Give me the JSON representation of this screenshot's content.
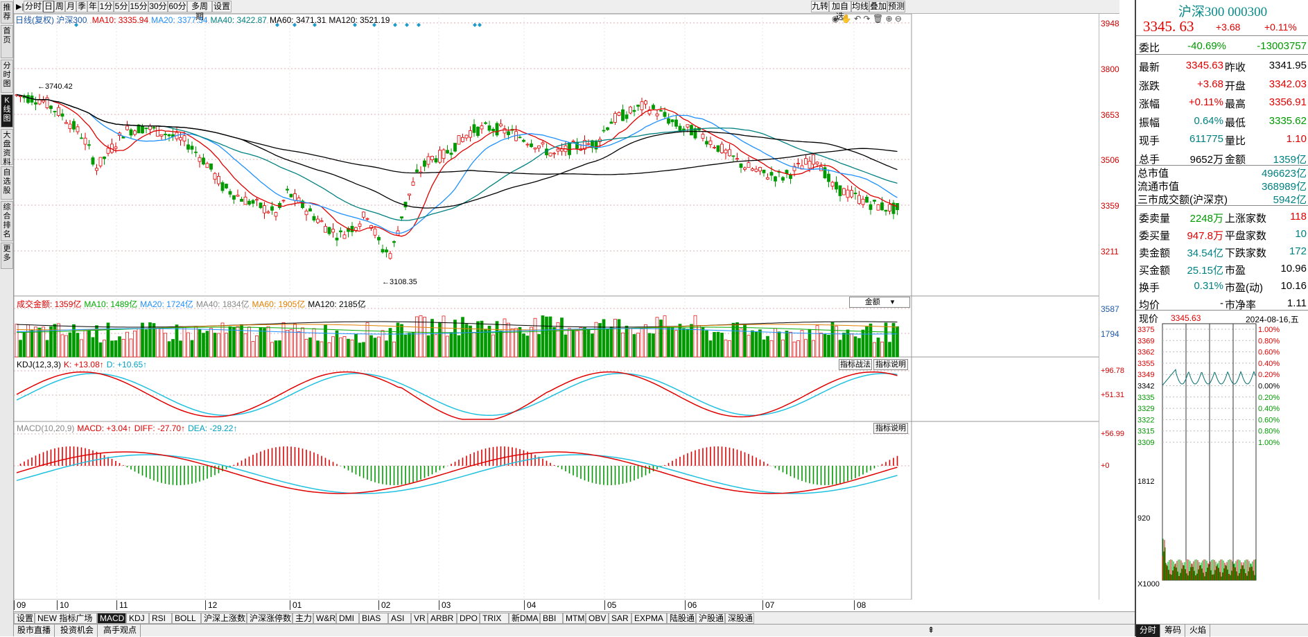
{
  "left_nav": [
    "推荐",
    "首页",
    "分时图",
    "K线图",
    "大盘资料",
    "自选股",
    "综合排名",
    "更多"
  ],
  "left_nav_active": 3,
  "period_bar": {
    "arrow_icon": "play-arrow-icon",
    "buttons": [
      "分时",
      "日",
      "周",
      "月",
      "季",
      "年",
      "1分",
      "5分",
      "15分",
      "30分",
      "60分",
      "多周期",
      "设置"
    ],
    "active_index": 1,
    "right_buttons": [
      "九转",
      "加自选",
      "均线",
      "叠加",
      "预测"
    ]
  },
  "main_chart": {
    "legend_prefix": "日线(复权)",
    "index_name": "沪深300",
    "ma": [
      {
        "label": "MA10: 3335.94",
        "color": "#e00000"
      },
      {
        "label": "MA20: 3377.34",
        "color": "#1e90ff"
      },
      {
        "label": "MA40: 3422.87",
        "color": "#008080"
      },
      {
        "label": "MA60: 3471.31",
        "color": "#000000"
      },
      {
        "label": "MA120: 3521.19",
        "color": "#000000"
      }
    ],
    "y_ticks": [
      "3948",
      "3800",
      "3653",
      "3506",
      "3359",
      "3211"
    ],
    "high_label": "3740.42",
    "low_label": "3108.35",
    "toolbar_icons": [
      "eye-icon",
      "hand-icon",
      "undo-icon",
      "redo-icon",
      "delete-icon",
      "zoom-in-icon",
      "zoom-out-icon"
    ]
  },
  "volume_panel": {
    "legend": [
      {
        "label": "成交金额: 1359亿",
        "color": "#e00000"
      },
      {
        "label": "MA10: 1489亿",
        "color": "#00aa00"
      },
      {
        "label": "MA20: 1724亿",
        "color": "#1e90ff"
      },
      {
        "label": "MA40: 1834亿",
        "color": "#888888"
      },
      {
        "label": "MA60: 1905亿",
        "color": "#e08000"
      },
      {
        "label": "MA120: 2185亿",
        "color": "#000000"
      }
    ],
    "selector": "金额",
    "y_ticks": [
      "3587",
      "1794"
    ]
  },
  "kdj_panel": {
    "legend": [
      {
        "label": "KDJ(12,3,3)",
        "color": "#000000"
      },
      {
        "label": "K: +13.08↑",
        "color": "#e00000"
      },
      {
        "label": "D: +10.65↑",
        "color": "#00a0c0"
      }
    ],
    "buttons": [
      "指标战法",
      "指标说明"
    ],
    "y_ticks": [
      "+96.78",
      "+51.31"
    ]
  },
  "macd_panel": {
    "legend": [
      {
        "label": "MACD(10,20,9)",
        "color": "#888888"
      },
      {
        "label": "MACD: +3.04↑",
        "color": "#e00000"
      },
      {
        "label": "DIFF: -27.70↑",
        "color": "#e00000"
      },
      {
        "label": "DEA: -29.22↑",
        "color": "#00a0c0"
      }
    ],
    "button": "指标说明",
    "y_ticks": [
      "+56.99",
      "+0"
    ]
  },
  "x_axis_months": [
    "09",
    "10",
    "11",
    "12",
    "01",
    "02",
    "03",
    "04",
    "05",
    "06",
    "07",
    "08"
  ],
  "indicator_tabs": [
    "设置",
    "NEW 指标广场",
    "MACD",
    "KDJ",
    "RSI",
    "BOLL",
    "沪深上涨数",
    "沪深涨停数",
    "主力",
    "W&R",
    "DMI",
    "BIAS",
    "ASI",
    "VR",
    "ARBR",
    "DPO",
    "TRIX",
    "新DMA",
    "BBI",
    "MTM",
    "OBV",
    "SAR",
    "EXPMA",
    "陆股通",
    "沪股通",
    "深股通"
  ],
  "indicator_active": 2,
  "bottom_bar": [
    "股市直播",
    "投资机会",
    "高手观点"
  ],
  "info_panel": {
    "title": "沪深300 000300",
    "price": "3345. 63",
    "change": "+3.68",
    "change_pct": "+0.11%",
    "weibi": {
      "label": "委比",
      "pct": "-40.69%",
      "val": "-13003757"
    },
    "rows": [
      {
        "l1": "最新",
        "v1": "3345.63",
        "c1": "red",
        "l2": "昨收",
        "v2": "3341.95",
        "c2": "blk"
      },
      {
        "l1": "涨跌",
        "v1": "+3.68",
        "c1": "red",
        "l2": "开盘",
        "v2": "3342.03",
        "c2": "red"
      },
      {
        "l1": "涨幅",
        "v1": "+0.11%",
        "c1": "red",
        "l2": "最高",
        "v2": "3356.91",
        "c2": "red"
      },
      {
        "l1": "振幅",
        "v1": "0.64%",
        "c1": "teal",
        "l2": "最低",
        "v2": "3335.62",
        "c2": "green"
      },
      {
        "l1": "现手",
        "v1": "611775",
        "c1": "teal",
        "l2": "量比",
        "v2": "1.10",
        "c2": "red"
      },
      {
        "l1": "总手",
        "v1": "9652万",
        "c1": "blk",
        "l2": "金额",
        "v2": "1359亿",
        "c2": "teal"
      }
    ],
    "market_rows": [
      {
        "l": "总市值",
        "v": "496623亿"
      },
      {
        "l": "流通市值",
        "v": "368989亿"
      },
      {
        "l": "三市成交额(沪深京)",
        "v": "5942亿"
      }
    ],
    "rows2": [
      {
        "l1": "委卖量",
        "v1": "2248万",
        "c1": "green",
        "l2": "上涨家数",
        "v2": "118",
        "c2": "red"
      },
      {
        "l1": "委买量",
        "v1": "947.8万",
        "c1": "red",
        "l2": "平盘家数",
        "v2": "10",
        "c2": "teal"
      },
      {
        "l1": "卖金额",
        "v1": "34.54亿",
        "c1": "teal",
        "l2": "下跌家数",
        "v2": "172",
        "c2": "teal"
      },
      {
        "l1": "买金额",
        "v1": "25.15亿",
        "c1": "teal",
        "l2": "市盈",
        "v2": "10.96",
        "c2": "blk"
      },
      {
        "l1": "换手",
        "v1": "0.31%",
        "c1": "teal",
        "l2": "市盈(动)",
        "v2": "10.16",
        "c2": "blk"
      },
      {
        "l1": "均价",
        "v1": "-",
        "c1": "blk",
        "l2": "市净率",
        "v2": "1.11",
        "c2": "blk"
      }
    ],
    "mini": {
      "label": "现价",
      "price": "3345.63",
      "date": "2024-08-16,五",
      "left_ticks": [
        "3375",
        "3369",
        "3362",
        "3355",
        "3349",
        "3342",
        "3335",
        "3329",
        "3322",
        "3315",
        "3309"
      ],
      "right_ticks": [
        "1.00%",
        "0.80%",
        "0.60%",
        "0.40%",
        "0.20%",
        "0.00%",
        "0.20%",
        "0.40%",
        "0.60%",
        "0.80%",
        "1.00%"
      ],
      "vol_ticks": [
        "1812",
        "920"
      ],
      "multiplier": "X1000",
      "tabs": [
        "分时",
        "筹码",
        "火焰"
      ]
    }
  }
}
